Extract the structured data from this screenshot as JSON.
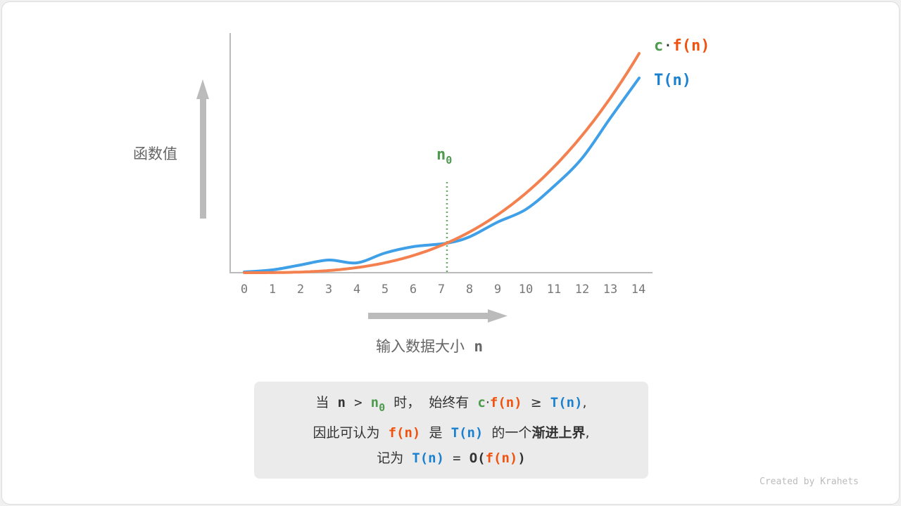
{
  "y_axis_label": "函数值",
  "x_axis_label": "输入数据大小",
  "x_axis_var": "n",
  "x_ticks": [
    "0",
    "1",
    "2",
    "3",
    "4",
    "5",
    "6",
    "7",
    "8",
    "9",
    "10",
    "11",
    "12",
    "13",
    "14"
  ],
  "n0_label": {
    "base": "n",
    "sub": "0"
  },
  "legend": {
    "cf_c": "c",
    "cf_dot": "·",
    "cf_f": "f(n)",
    "t": "T(n)"
  },
  "colors": {
    "cf": "#f4804f",
    "t": "#3fa0e8",
    "n0": "#4e9a4e"
  },
  "note": {
    "l1": [
      "当",
      "n",
      ">",
      "n",
      "0",
      "时，",
      "始终有",
      "c",
      "·",
      "f(n)",
      "≥",
      "T(n)",
      ","
    ],
    "l2": [
      "因此可认为",
      "f(n)",
      "是",
      "T(n)",
      "的一个",
      "渐进上界",
      ","
    ],
    "l3": [
      "记为",
      "T(n)",
      "=",
      "O(",
      "f(n)",
      ")"
    ]
  },
  "credit": "Created by Krahets"
}
